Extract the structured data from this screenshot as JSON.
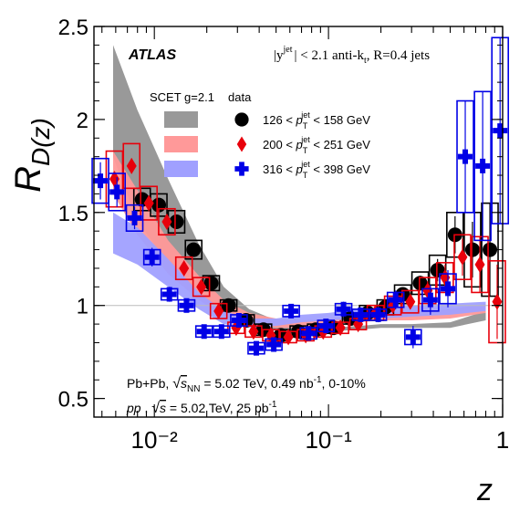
{
  "chart_data": {
    "type": "scatter",
    "experiment": "ATLAS",
    "ylabel": "R_D(z)",
    "ylabel_parts": {
      "main": "R",
      "sub": "D(z)"
    },
    "xlabel": "z",
    "x_scale": "log",
    "xlim": [
      0.0045,
      1.0
    ],
    "ylim": [
      0.4,
      2.5
    ],
    "x_ticks": [
      {
        "value": 0.01,
        "label": "10⁻²"
      },
      {
        "value": 0.1,
        "label": "10⁻¹"
      },
      {
        "value": 1,
        "label": "1"
      }
    ],
    "y_ticks": [
      0.5,
      1,
      1.5,
      2,
      2.5
    ],
    "grid": false,
    "reference_line": 1,
    "selection_text": {
      "rap": "|y",
      "rap_sup": "jet",
      "rest": "| < 2.1 anti-k",
      "kt_sub": "t",
      "r": ", R=0.4 jets"
    },
    "legend": {
      "placement": "top-right",
      "model_header": "SCET g=2.1",
      "data_header": "data",
      "entries": [
        {
          "lo": "126",
          "hi": "158",
          "unit": "GeV",
          "var": "p",
          "var_sub": "T",
          "var_sup": "jet",
          "lt": "<"
        },
        {
          "lo": "200",
          "hi": "251",
          "unit": "GeV",
          "var": "p",
          "var_sub": "T",
          "var_sup": "jet",
          "lt": "<"
        },
        {
          "lo": "316",
          "hi": "398",
          "unit": "GeV",
          "var": "p",
          "var_sub": "T",
          "var_sup": "jet",
          "lt": "<"
        }
      ]
    },
    "bottom_text": {
      "line1_a": "Pb+Pb, ",
      "line1_s": "s",
      "line1_nn": "NN",
      "line1_b": " = 5.02 TeV, 0.49 nb",
      "line1_c": "-1",
      "line1_d": ", 0-10%",
      "line2_a": "pp",
      "line2_b": " , ",
      "line2_s": "s",
      "line2_c": " = 5.02 TeV, 25 pb",
      "line2_d": "-1"
    },
    "series": [
      {
        "name": "126 < pT jet < 158 GeV",
        "marker": "circle",
        "color": "#000000",
        "theory_color": "#999999",
        "x": [
          0.0085,
          0.0106,
          0.0134,
          0.0168,
          0.0212,
          0.0267,
          0.0336,
          0.0423,
          0.0533,
          0.0671,
          0.0845,
          0.1064,
          0.134,
          0.168,
          0.212,
          0.267,
          0.336,
          0.423,
          0.533,
          0.671,
          0.845
        ],
        "y": [
          1.57,
          1.54,
          1.45,
          1.3,
          1.12,
          1.0,
          0.92,
          0.87,
          0.84,
          0.86,
          0.87,
          0.88,
          0.93,
          0.96,
          0.99,
          1.06,
          1.12,
          1.19,
          1.38,
          1.3,
          1.3
        ],
        "stat": [
          0.03,
          0.03,
          0.03,
          0.02,
          0.02,
          0.02,
          0.02,
          0.02,
          0.02,
          0.02,
          0.02,
          0.02,
          0.02,
          0.03,
          0.03,
          0.03,
          0.04,
          0.06,
          0.1,
          0.15,
          0.25
        ],
        "sys": [
          0.06,
          0.06,
          0.06,
          0.05,
          0.04,
          0.03,
          0.03,
          0.03,
          0.03,
          0.03,
          0.03,
          0.03,
          0.03,
          0.04,
          0.04,
          0.05,
          0.06,
          0.08,
          0.12,
          0.2,
          0.25
        ],
        "theory_x": [
          0.0058,
          0.008,
          0.012,
          0.018,
          0.025,
          0.035,
          0.05,
          0.07,
          0.1,
          0.15,
          0.2,
          0.3,
          0.5,
          0.8
        ],
        "theory_lo": [
          1.8,
          1.45,
          1.23,
          1.05,
          0.96,
          0.9,
          0.87,
          0.86,
          0.86,
          0.87,
          0.88,
          0.88,
          0.88,
          0.92
        ],
        "theory_hi": [
          2.4,
          2.05,
          1.68,
          1.33,
          1.1,
          0.98,
          0.92,
          0.89,
          0.88,
          0.89,
          0.9,
          0.9,
          0.91,
          0.97
        ]
      },
      {
        "name": "200 < pT jet < 251 GeV",
        "marker": "diamond",
        "color": "#e8000b",
        "theory_color": "#ff9999",
        "x": [
          0.0059,
          0.0074,
          0.0093,
          0.0118,
          0.0148,
          0.0186,
          0.0234,
          0.0295,
          0.0371,
          0.0467,
          0.0588,
          0.074,
          0.0932,
          0.117,
          0.148,
          0.186,
          0.234,
          0.295,
          0.371,
          0.467,
          0.588,
          0.74,
          0.93
        ],
        "y": [
          1.68,
          1.75,
          1.55,
          1.45,
          1.2,
          1.1,
          0.97,
          0.88,
          0.86,
          0.84,
          0.83,
          0.84,
          0.86,
          0.88,
          0.9,
          0.96,
          1.0,
          1.02,
          1.08,
          1.15,
          1.26,
          1.22,
          1.02
        ],
        "stat": [
          0.04,
          0.04,
          0.03,
          0.03,
          0.03,
          0.02,
          0.02,
          0.02,
          0.02,
          0.02,
          0.02,
          0.02,
          0.02,
          0.02,
          0.02,
          0.03,
          0.03,
          0.04,
          0.05,
          0.07,
          0.1,
          0.15,
          0.2
        ],
        "sys": [
          0.15,
          0.12,
          0.09,
          0.07,
          0.06,
          0.05,
          0.04,
          0.03,
          0.03,
          0.03,
          0.03,
          0.03,
          0.03,
          0.03,
          0.03,
          0.04,
          0.05,
          0.06,
          0.07,
          0.08,
          0.12,
          0.15,
          0.22
        ],
        "theory_x": [
          0.0058,
          0.008,
          0.012,
          0.018,
          0.025,
          0.035,
          0.05,
          0.07,
          0.1,
          0.15,
          0.2,
          0.3,
          0.5,
          0.8
        ],
        "theory_lo": [
          1.6,
          1.38,
          1.17,
          1.03,
          0.94,
          0.9,
          0.88,
          0.88,
          0.9,
          0.91,
          0.92,
          0.92,
          0.93,
          0.96
        ],
        "theory_hi": [
          1.83,
          1.62,
          1.35,
          1.16,
          1.03,
          0.96,
          0.93,
          0.92,
          0.93,
          0.95,
          0.96,
          0.97,
          0.98,
          1.01
        ]
      },
      {
        "name": "316 < pT jet < 398 GeV",
        "marker": "cross",
        "color": "#0000e6",
        "theory_color": "#a0a0ff",
        "x": [
          0.0049,
          0.0061,
          0.0077,
          0.0097,
          0.0122,
          0.0153,
          0.0193,
          0.0243,
          0.0306,
          0.0385,
          0.0485,
          0.061,
          0.0768,
          0.0967,
          0.122,
          0.153,
          0.193,
          0.243,
          0.306,
          0.385,
          0.485,
          0.61,
          0.768,
          0.967
        ],
        "y": [
          1.67,
          1.61,
          1.47,
          1.26,
          1.06,
          1.0,
          0.86,
          0.86,
          0.92,
          0.77,
          0.79,
          0.97,
          0.85,
          0.89,
          0.98,
          0.95,
          0.95,
          1.03,
          0.83,
          1.03,
          1.09,
          1.8,
          1.75,
          1.94
        ],
        "stat": [
          0.1,
          0.08,
          0.06,
          0.05,
          0.04,
          0.03,
          0.03,
          0.03,
          0.03,
          0.03,
          0.03,
          0.03,
          0.03,
          0.03,
          0.04,
          0.04,
          0.04,
          0.05,
          0.06,
          0.08,
          0.1,
          0.3,
          0.4,
          0.5
        ],
        "sys": [
          0.12,
          0.1,
          0.07,
          0.04,
          0.03,
          0.03,
          0.03,
          0.03,
          0.03,
          0.03,
          0.03,
          0.03,
          0.03,
          0.03,
          0.03,
          0.03,
          0.03,
          0.04,
          0.04,
          0.06,
          0.08,
          0.3,
          0.4,
          0.5
        ],
        "theory_x": [
          0.0058,
          0.008,
          0.012,
          0.018,
          0.025,
          0.035,
          0.05,
          0.07,
          0.1,
          0.15,
          0.2,
          0.3,
          0.5,
          0.8
        ],
        "theory_lo": [
          1.28,
          1.22,
          1.1,
          0.98,
          0.9,
          0.88,
          0.89,
          0.91,
          0.92,
          0.93,
          0.93,
          0.94,
          0.95,
          0.97
        ],
        "theory_hi": [
          1.5,
          1.42,
          1.25,
          1.07,
          0.97,
          0.93,
          0.93,
          0.95,
          0.96,
          0.98,
          0.99,
          1.0,
          1.01,
          1.02
        ]
      }
    ]
  }
}
